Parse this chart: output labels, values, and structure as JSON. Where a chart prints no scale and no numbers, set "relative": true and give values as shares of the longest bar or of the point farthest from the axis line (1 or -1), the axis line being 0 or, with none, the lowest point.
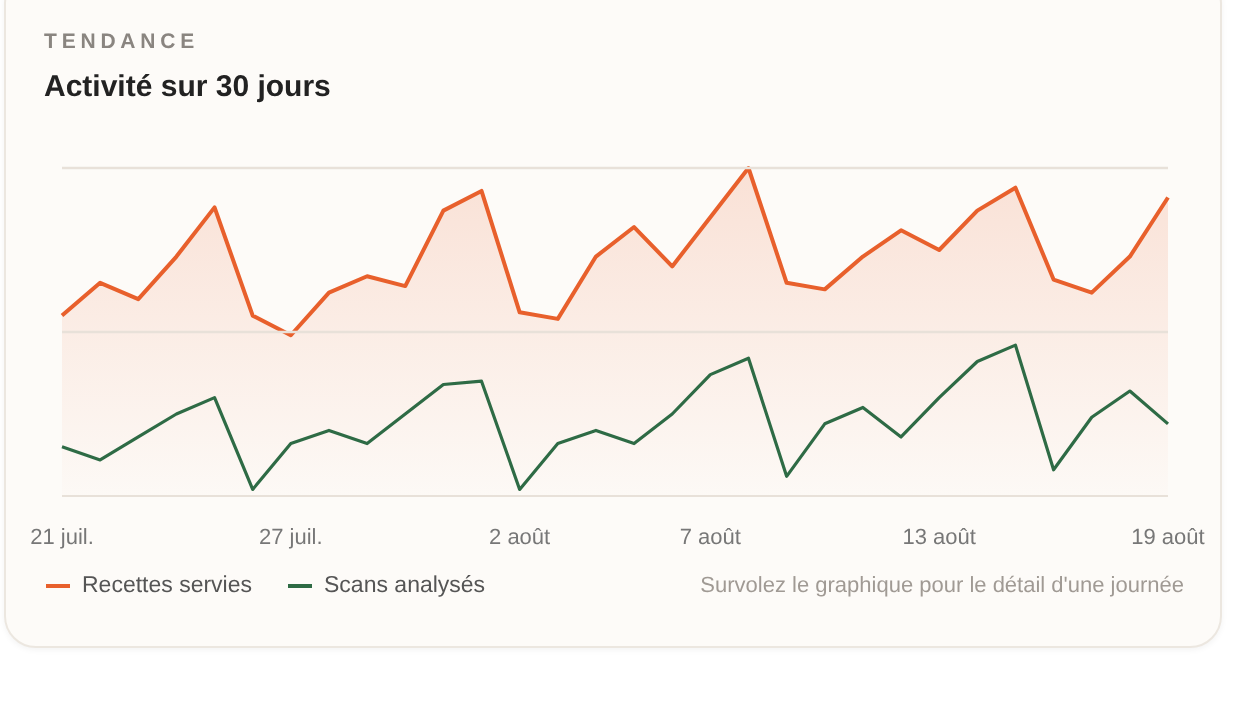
{
  "chart_data": {
    "type": "line",
    "subtitle": "TENDANCE",
    "title": "Activité sur 30 jours",
    "relative": true,
    "legend": "bottom left",
    "marker": "none",
    "categories": [
      "21 juil.",
      null,
      null,
      null,
      null,
      null,
      "27 juil.",
      null,
      null,
      null,
      null,
      null,
      "2 août",
      null,
      null,
      null,
      null,
      "7 août",
      null,
      null,
      null,
      null,
      null,
      "13 août",
      null,
      null,
      null,
      null,
      null,
      "19 août"
    ],
    "series": [
      {
        "name": "Recettes servies",
        "type": "area",
        "color": "#e8602c",
        "values": [
          0.55,
          0.65,
          0.6,
          0.73,
          0.88,
          0.55,
          0.49,
          0.62,
          0.67,
          0.64,
          0.87,
          0.93,
          0.56,
          0.54,
          0.73,
          0.82,
          0.7,
          0.85,
          1,
          0.65,
          0.63,
          0.73,
          0.81,
          0.75,
          0.87,
          0.94,
          0.66,
          0.62,
          0.73,
          0.91
        ]
      },
      {
        "name": "Scans analysés",
        "color": "#2e6b45",
        "values": [
          0.15,
          0.11,
          0.18,
          0.25,
          0.3,
          0.02,
          0.16,
          0.2,
          0.16,
          0.25,
          0.34,
          0.35,
          0.02,
          0.16,
          0.2,
          0.16,
          0.25,
          0.37,
          0.42,
          0.06,
          0.22,
          0.27,
          0.18,
          0.3,
          0.41,
          0.46,
          0.08,
          0.24,
          0.32,
          0.22
        ]
      }
    ],
    "ref_lines": [
      {
        "axis": "y",
        "value": 0.5,
        "color": "#e8e1d9"
      },
      {
        "axis": "y",
        "value": 1,
        "color": "#e8e1d9"
      }
    ],
    "annotations": [
      "Survolez le graphique pour le détail d'une journée"
    ]
  }
}
